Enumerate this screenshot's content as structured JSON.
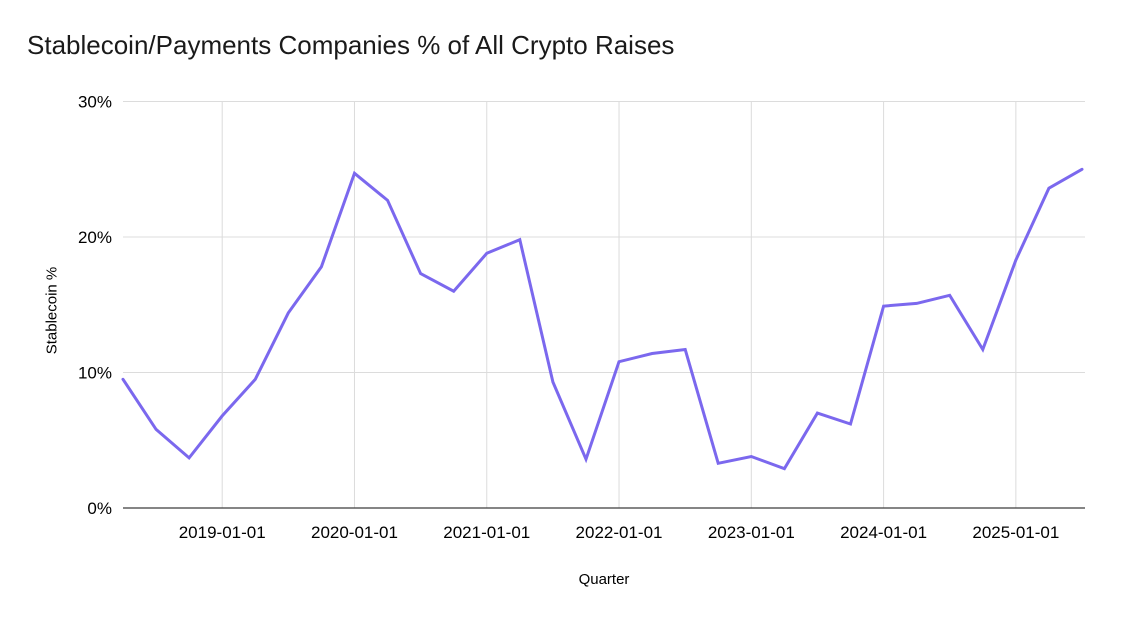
{
  "chart_data": {
    "type": "line",
    "title": "Stablecoin/Payments Companies % of All Crypto Raises",
    "xlabel": "Quarter",
    "ylabel": "Stablecoin %",
    "x": [
      "2018-04-01",
      "2018-07-01",
      "2018-10-01",
      "2019-01-01",
      "2019-04-01",
      "2019-07-01",
      "2019-10-01",
      "2020-01-01",
      "2020-04-01",
      "2020-07-01",
      "2020-10-01",
      "2021-01-01",
      "2021-04-01",
      "2021-07-01",
      "2021-10-01",
      "2022-01-01",
      "2022-04-01",
      "2022-07-01",
      "2022-10-01",
      "2023-01-01",
      "2023-04-01",
      "2023-07-01",
      "2023-10-01",
      "2024-01-01",
      "2024-04-01",
      "2024-07-01",
      "2024-10-01",
      "2025-01-01",
      "2025-04-01",
      "2025-07-01"
    ],
    "values": [
      9.5,
      5.8,
      3.7,
      6.8,
      9.5,
      14.4,
      17.8,
      24.7,
      22.7,
      17.3,
      16.0,
      18.8,
      19.8,
      9.3,
      3.6,
      10.8,
      11.4,
      11.7,
      3.3,
      3.8,
      2.9,
      7.0,
      6.2,
      14.9,
      15.1,
      15.7,
      11.7,
      18.3,
      23.6,
      25.0
    ],
    "ylim": [
      0,
      30
    ],
    "y_ticks": [
      {
        "value": 0,
        "label": "0%"
      },
      {
        "value": 10,
        "label": "10%"
      },
      {
        "value": 20,
        "label": "20%"
      },
      {
        "value": 30,
        "label": "30%"
      }
    ],
    "x_ticks": [
      "2019-01-01",
      "2020-01-01",
      "2021-01-01",
      "2022-01-01",
      "2023-01-01",
      "2024-01-01",
      "2025-01-01"
    ],
    "grid": true,
    "legend": false,
    "colors": {
      "line": "#7B68EE",
      "gridline": "#dcdcdc",
      "axis": "#3c3c3c",
      "text": "#000000",
      "title": "#1a1a1a",
      "background": "#ffffff"
    }
  }
}
